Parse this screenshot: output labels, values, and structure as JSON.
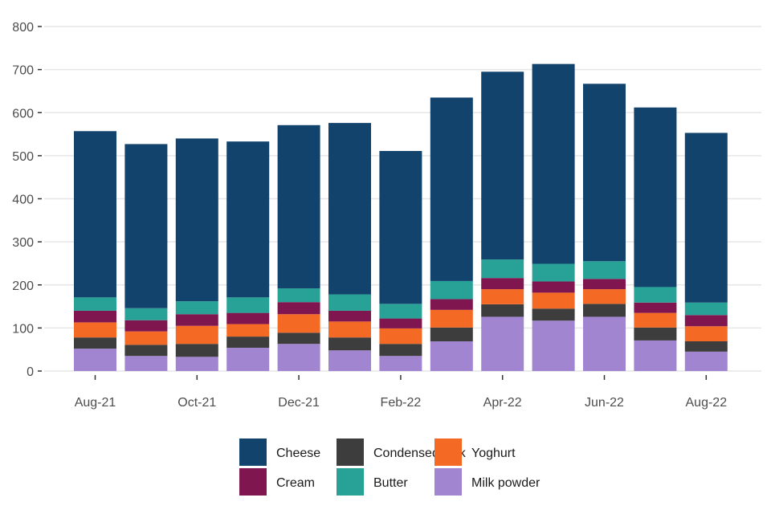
{
  "chart_data": {
    "type": "bar",
    "stacked": true,
    "title": "",
    "xlabel": "",
    "ylabel": "",
    "ylim": [
      0,
      800
    ],
    "yticks": [
      0,
      100,
      200,
      300,
      400,
      500,
      600,
      700,
      800
    ],
    "grid": true,
    "legend_position": "bottom",
    "categories": [
      "Aug-21",
      "Sep-21",
      "Oct-21",
      "Nov-21",
      "Dec-21",
      "Jan-22",
      "Feb-22",
      "Mar-22",
      "Apr-22",
      "May-22",
      "Jun-22",
      "Jul-22",
      "Aug-22"
    ],
    "tick_labels": [
      "Aug-21",
      "Oct-21",
      "Dec-21",
      "Feb-22",
      "Apr-22",
      "Jun-22",
      "Aug-22"
    ],
    "series": [
      {
        "name": "Milk powder",
        "color": "#a285d1",
        "values": [
          52,
          35,
          33,
          54,
          63,
          48,
          35,
          69,
          126,
          117,
          126,
          71,
          45
        ]
      },
      {
        "name": "Condensed milk",
        "color": "#3d3d3d",
        "values": [
          26,
          26,
          30,
          26,
          26,
          30,
          28,
          32,
          29,
          28,
          30,
          30,
          24
        ]
      },
      {
        "name": "Yoghurt",
        "color": "#f46a25",
        "values": [
          35,
          31,
          42,
          29,
          43,
          37,
          36,
          41,
          35,
          37,
          34,
          34,
          35
        ]
      },
      {
        "name": "Cream",
        "color": "#801650",
        "values": [
          27,
          26,
          27,
          26,
          28,
          25,
          23,
          25,
          26,
          26,
          24,
          24,
          26
        ]
      },
      {
        "name": "Butter",
        "color": "#28a197",
        "values": [
          31,
          28,
          30,
          36,
          32,
          38,
          34,
          42,
          43,
          41,
          41,
          36,
          29
        ]
      },
      {
        "name": "Cheese",
        "color": "#12436d",
        "values": [
          386,
          381,
          378,
          362,
          379,
          398,
          355,
          426,
          436,
          464,
          412,
          417,
          394
        ]
      }
    ],
    "legend": [
      {
        "name": "Cheese",
        "color": "#12436d"
      },
      {
        "name": "Cream",
        "color": "#801650"
      },
      {
        "name": "Condensed milk",
        "color": "#3d3d3d"
      },
      {
        "name": "Butter",
        "color": "#28a197"
      },
      {
        "name": "Yoghurt",
        "color": "#f46a25"
      },
      {
        "name": "Milk powder",
        "color": "#a285d1"
      }
    ]
  }
}
